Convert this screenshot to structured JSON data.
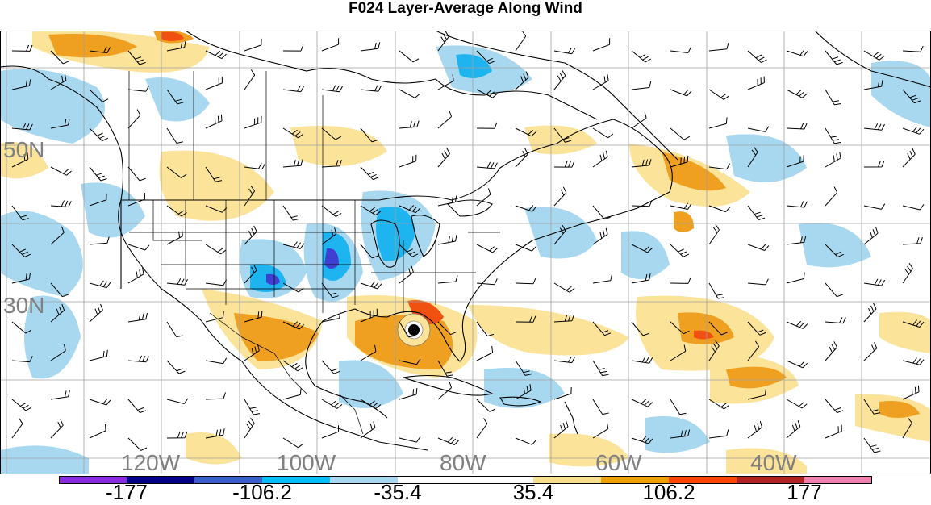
{
  "title": "F024 Layer-Average Along Wind",
  "map": {
    "lat_labels": [
      "50N",
      "30N"
    ],
    "lon_labels": [
      "120W",
      "100W",
      "80W",
      "60W",
      "40W"
    ],
    "label_color": "#808080",
    "storm_marker": "storm-center-icon"
  },
  "colorbar": {
    "colors": [
      "#8a2be2",
      "#00008b",
      "#3a5fcd",
      "#00bfff",
      "#a8d8f0",
      "#ffffff",
      "#ffffff",
      "#f8e08e",
      "#f0a000",
      "#ff4500",
      "#b22222",
      "#f080b0"
    ],
    "labels": [
      "-177",
      "-106.2",
      "-35.4",
      "35.4",
      "106.2",
      "177"
    ]
  },
  "legend_colors": {
    "neg_light": "#a8d8f0",
    "neg_mid": "#1eb4f0",
    "neg_dark": "#4040d0",
    "pos_light": "#fbe39a",
    "pos_mid": "#f0a020",
    "pos_dark": "#f05010"
  }
}
